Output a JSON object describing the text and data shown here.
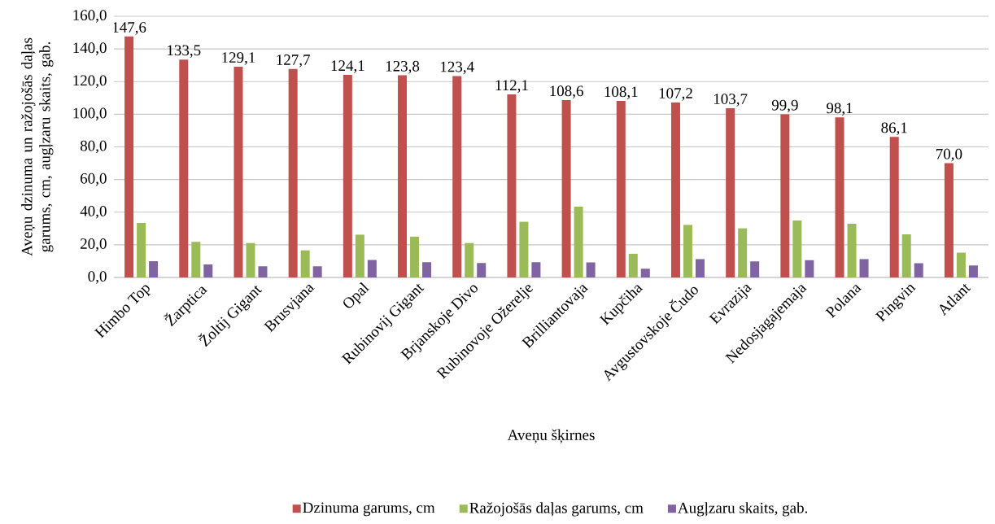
{
  "chart_data": {
    "type": "bar",
    "xlabel": "Aveņu šķirnes",
    "ylabel": "Aveņu dzinuma un ražojošās daļas garums, cm, augļzaru skaits, gab.",
    "categories": [
      "Himbo Top",
      "Žarptica",
      "Žoltij Gigant",
      "Brusvjana",
      "Opal",
      "Rubinovij Gigant",
      "Brjanskoje Divo",
      "Rubinovoje Ožerelje",
      "Brilliantovaja",
      "Kupčiha",
      "Avgustovskoje Čudo",
      "Evrazija",
      "Nedosjagajemaja",
      "Polana",
      "Pingvin",
      "Atlant"
    ],
    "series": [
      {
        "name": "Dzinuma garums, cm",
        "color": "#c0504d",
        "values": [
          147.6,
          133.5,
          129.1,
          127.7,
          124.1,
          123.8,
          123.4,
          112.1,
          108.6,
          108.1,
          107.2,
          103.7,
          99.9,
          98.1,
          86.1,
          70.0
        ],
        "value_labels": [
          "147,6",
          "133,5",
          "129,1",
          "127,7",
          "124,1",
          "123,8",
          "123,4",
          "112,1",
          "108,6",
          "108,1",
          "107,2",
          "103,7",
          "99,9",
          "98,1",
          "86,1",
          "70,0"
        ]
      },
      {
        "name": "Ražojošās daļas garums, cm",
        "color": "#9bbb59",
        "values": [
          33.4,
          21.8,
          21.1,
          16.6,
          26.2,
          25.0,
          21.1,
          34.1,
          43.4,
          14.5,
          32.2,
          30.1,
          34.9,
          32.9,
          26.4,
          15.2
        ]
      },
      {
        "name": "Augļzaru skaits, gab.",
        "color": "#8064a2",
        "values": [
          10.0,
          8.0,
          6.8,
          6.8,
          10.7,
          9.3,
          8.8,
          9.3,
          9.2,
          5.3,
          11.3,
          9.9,
          10.6,
          11.3,
          8.7,
          7.4
        ]
      }
    ],
    "ylim": [
      0,
      160
    ],
    "yticks": [
      {
        "value": 0,
        "label": "0,0"
      },
      {
        "value": 20,
        "label": "20,0"
      },
      {
        "value": 40,
        "label": "40,0"
      },
      {
        "value": 60,
        "label": "60,0"
      },
      {
        "value": 80,
        "label": "80,0"
      },
      {
        "value": 100,
        "label": "100,0"
      },
      {
        "value": 120,
        "label": "120,0"
      },
      {
        "value": 140,
        "label": "140,0"
      },
      {
        "value": 160,
        "label": "160,0"
      }
    ],
    "grid": "y",
    "legend": "bottom"
  }
}
